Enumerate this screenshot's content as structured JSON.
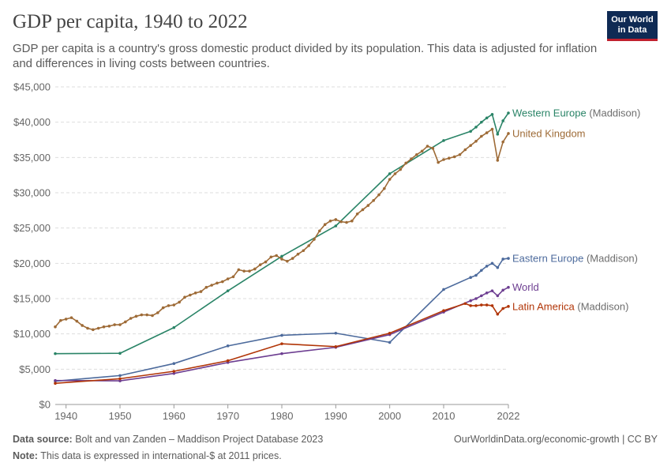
{
  "header": {
    "title": "GDP per capita, 1940 to 2022",
    "subtitle": "GDP per capita is a country's gross domestic product divided by its population. This data is adjusted for inflation and differences in living costs between countries.",
    "logo_line1": "Our World",
    "logo_line2": "in Data"
  },
  "footer": {
    "source_label": "Data source:",
    "source_text": "Bolt and van Zanden – Maddison Project Database 2023",
    "note_label": "Note:",
    "note_text": "This data is expressed in international-$ at 2011 prices.",
    "url_text": "OurWorldinData.org/economic-growth | CC BY"
  },
  "chart_data": {
    "type": "line",
    "title": "GDP per capita, 1940 to 2022",
    "xlim": [
      1938,
      2022
    ],
    "ylim": [
      0,
      45000
    ],
    "x_ticks": [
      1940,
      1950,
      1960,
      1970,
      1980,
      1990,
      2000,
      2010,
      2022
    ],
    "y_ticks": [
      0,
      5000,
      10000,
      15000,
      20000,
      25000,
      30000,
      35000,
      40000,
      45000
    ],
    "y_tick_labels": [
      "$0",
      "$5,000",
      "$10,000",
      "$15,000",
      "$20,000",
      "$25,000",
      "$30,000",
      "$35,000",
      "$40,000",
      "$45,000"
    ],
    "x_tick_labels": [
      "1940",
      "1950",
      "1960",
      "1970",
      "1980",
      "1990",
      "2000",
      "2010",
      "2022"
    ],
    "grid": "horizontal dashed",
    "legend": "inline labels at line ends (right)",
    "series": [
      {
        "name": "Western Europe",
        "name_suffix": "(Maddison)",
        "color": "#2a8467",
        "points": [
          [
            1938,
            7200
          ],
          [
            1950,
            7250
          ],
          [
            1960,
            10900
          ],
          [
            1970,
            16100
          ],
          [
            1980,
            21000
          ],
          [
            1990,
            25300
          ],
          [
            2000,
            32700
          ],
          [
            2010,
            37400
          ],
          [
            2015,
            38700
          ],
          [
            2016,
            39300
          ],
          [
            2017,
            40000
          ],
          [
            2018,
            40600
          ],
          [
            2019,
            41100
          ],
          [
            2020,
            38300
          ],
          [
            2021,
            40200
          ],
          [
            2022,
            41300
          ]
        ]
      },
      {
        "name": "United Kingdom",
        "name_suffix": "",
        "color": "#9e6b37",
        "points": [
          [
            1938,
            11000
          ],
          [
            1939,
            11900
          ],
          [
            1940,
            12100
          ],
          [
            1941,
            12300
          ],
          [
            1942,
            11800
          ],
          [
            1943,
            11200
          ],
          [
            1944,
            10800
          ],
          [
            1945,
            10600
          ],
          [
            1946,
            10800
          ],
          [
            1947,
            11000
          ],
          [
            1948,
            11100
          ],
          [
            1949,
            11300
          ],
          [
            1950,
            11300
          ],
          [
            1951,
            11700
          ],
          [
            1952,
            12200
          ],
          [
            1953,
            12500
          ],
          [
            1954,
            12700
          ],
          [
            1955,
            12700
          ],
          [
            1956,
            12600
          ],
          [
            1957,
            13000
          ],
          [
            1958,
            13700
          ],
          [
            1959,
            14000
          ],
          [
            1960,
            14100
          ],
          [
            1961,
            14500
          ],
          [
            1962,
            15200
          ],
          [
            1963,
            15500
          ],
          [
            1964,
            15800
          ],
          [
            1965,
            16000
          ],
          [
            1966,
            16600
          ],
          [
            1967,
            16900
          ],
          [
            1968,
            17200
          ],
          [
            1969,
            17400
          ],
          [
            1970,
            17800
          ],
          [
            1971,
            18100
          ],
          [
            1972,
            19100
          ],
          [
            1973,
            18900
          ],
          [
            1974,
            18900
          ],
          [
            1975,
            19200
          ],
          [
            1976,
            19800
          ],
          [
            1977,
            20200
          ],
          [
            1978,
            20900
          ],
          [
            1979,
            21100
          ],
          [
            1980,
            20600
          ],
          [
            1981,
            20300
          ],
          [
            1982,
            20700
          ],
          [
            1983,
            21300
          ],
          [
            1984,
            21800
          ],
          [
            1985,
            22500
          ],
          [
            1986,
            23400
          ],
          [
            1987,
            24600
          ],
          [
            1988,
            25500
          ],
          [
            1989,
            26000
          ],
          [
            1990,
            26200
          ],
          [
            1991,
            25900
          ],
          [
            1992,
            25800
          ],
          [
            1993,
            26000
          ],
          [
            1994,
            27000
          ],
          [
            1995,
            27600
          ],
          [
            1996,
            28200
          ],
          [
            1997,
            28900
          ],
          [
            1998,
            29700
          ],
          [
            1999,
            30600
          ],
          [
            2000,
            31900
          ],
          [
            2001,
            32700
          ],
          [
            2002,
            33300
          ],
          [
            2003,
            34200
          ],
          [
            2004,
            34800
          ],
          [
            2005,
            35400
          ],
          [
            2006,
            35900
          ],
          [
            2007,
            36600
          ],
          [
            2008,
            36300
          ],
          [
            2009,
            34300
          ],
          [
            2010,
            34700
          ],
          [
            2011,
            34900
          ],
          [
            2012,
            35100
          ],
          [
            2013,
            35400
          ],
          [
            2014,
            36100
          ],
          [
            2015,
            36700
          ],
          [
            2016,
            37300
          ],
          [
            2017,
            38000
          ],
          [
            2018,
            38500
          ],
          [
            2019,
            39000
          ],
          [
            2020,
            34600
          ],
          [
            2021,
            37200
          ],
          [
            2022,
            38400
          ]
        ]
      },
      {
        "name": "Eastern Europe",
        "name_suffix": "(Maddison)",
        "color": "#4c6a9c",
        "points": [
          [
            1938,
            3300
          ],
          [
            1950,
            4100
          ],
          [
            1960,
            5800
          ],
          [
            1970,
            8300
          ],
          [
            1980,
            9800
          ],
          [
            1990,
            10100
          ],
          [
            2000,
            8800
          ],
          [
            2010,
            16300
          ],
          [
            2015,
            18000
          ],
          [
            2016,
            18300
          ],
          [
            2017,
            19000
          ],
          [
            2018,
            19600
          ],
          [
            2019,
            20000
          ],
          [
            2020,
            19400
          ],
          [
            2021,
            20600
          ],
          [
            2022,
            20700
          ]
        ]
      },
      {
        "name": "World",
        "name_suffix": "",
        "color": "#6d3e91",
        "points": [
          [
            1938,
            3400
          ],
          [
            1950,
            3350
          ],
          [
            1960,
            4400
          ],
          [
            1970,
            5950
          ],
          [
            1980,
            7200
          ],
          [
            1990,
            8100
          ],
          [
            2000,
            9900
          ],
          [
            2010,
            13100
          ],
          [
            2015,
            14700
          ],
          [
            2016,
            15000
          ],
          [
            2017,
            15400
          ],
          [
            2018,
            15800
          ],
          [
            2019,
            16100
          ],
          [
            2020,
            15400
          ],
          [
            2021,
            16200
          ],
          [
            2022,
            16600
          ]
        ]
      },
      {
        "name": "Latin America",
        "name_suffix": "(Maddison)",
        "color": "#b13507",
        "points": [
          [
            1938,
            3000
          ],
          [
            1950,
            3650
          ],
          [
            1960,
            4700
          ],
          [
            1970,
            6200
          ],
          [
            1980,
            8600
          ],
          [
            1990,
            8200
          ],
          [
            2000,
            10100
          ],
          [
            2010,
            13300
          ],
          [
            2014,
            14300
          ],
          [
            2015,
            14000
          ],
          [
            2016,
            14000
          ],
          [
            2017,
            14100
          ],
          [
            2018,
            14100
          ],
          [
            2019,
            14000
          ],
          [
            2020,
            12800
          ],
          [
            2021,
            13600
          ],
          [
            2022,
            13900
          ]
        ]
      }
    ]
  }
}
